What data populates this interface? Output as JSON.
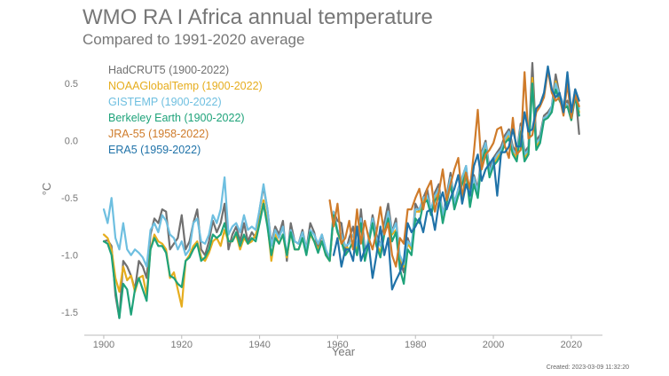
{
  "chart_data": {
    "type": "line",
    "title": "WMO RA I Africa annual temperature",
    "subtitle": "Compared to 1991-2020 average",
    "xlabel": "Year",
    "ylabel": "°C",
    "xlim": [
      1895,
      2028
    ],
    "ylim": [
      -1.7,
      0.75
    ],
    "xticks": [
      1900,
      1920,
      1940,
      1960,
      1980,
      2000,
      2020
    ],
    "yticks": [
      -1.5,
      -1.0,
      -0.5,
      0.0,
      0.5
    ],
    "ytick_labels": [
      "-1.5",
      "-1.0",
      "-0.5",
      "0.0",
      "0.5"
    ],
    "grid": false,
    "legend_position": "top-left",
    "created": "Created: 2023-03-09 11:32:20",
    "series": [
      {
        "name": "HadCRUT5 (1900-2022)",
        "color": "#707070",
        "start_year": 1900,
        "values": [
          -0.88,
          -0.87,
          -0.92,
          -1.35,
          -1.55,
          -1.05,
          -1.1,
          -1.18,
          -1.3,
          -1.05,
          -1.1,
          -1.2,
          -0.82,
          -0.68,
          -0.72,
          -0.6,
          -0.62,
          -0.95,
          -0.9,
          -0.85,
          -0.65,
          -0.95,
          -0.88,
          -0.72,
          -0.6,
          -0.95,
          -1.0,
          -0.88,
          -0.7,
          -0.8,
          -0.72,
          -0.55,
          -0.95,
          -0.82,
          -0.75,
          -0.88,
          -0.72,
          -0.88,
          -0.8,
          -0.85,
          -0.6,
          -0.4,
          -0.6,
          -0.9,
          -0.75,
          -0.82,
          -0.7,
          -1.05,
          -0.72,
          -0.88,
          -0.9,
          -0.78,
          -0.95,
          -0.72,
          -0.8,
          -0.95,
          -0.82,
          -0.95,
          -1.05,
          -0.62,
          -0.7,
          -0.72,
          -0.98,
          -0.85,
          -0.75,
          -1.0,
          -0.6,
          -0.95,
          -0.88,
          -0.65,
          -0.82,
          -0.92,
          -0.72,
          -0.55,
          -0.8,
          -0.68,
          -1.05,
          -1.15,
          -0.85,
          -0.95,
          -0.55,
          -0.62,
          -0.5,
          -0.42,
          -0.62,
          -0.45,
          -0.38,
          -0.65,
          -0.48,
          -0.28,
          -0.55,
          -0.42,
          -0.32,
          -0.22,
          -0.55,
          -0.3,
          -0.42,
          -0.1,
          0.0,
          -0.25,
          -0.15,
          -0.1,
          -0.05,
          0.05,
          0.1,
          -0.05,
          -0.1,
          0.15,
          -0.1,
          -0.05,
          0.68,
          0.0,
          0.05,
          0.22,
          0.25,
          0.3,
          0.58,
          0.4,
          0.32,
          0.35,
          0.2,
          0.45,
          0.06
        ]
      },
      {
        "name": "NOAAGlobalTemp (1900-2022)",
        "color": "#e6ad1e",
        "start_year": 1900,
        "values": [
          -0.82,
          -0.85,
          -0.95,
          -1.2,
          -1.32,
          -1.1,
          -1.22,
          -1.18,
          -1.32,
          -1.2,
          -1.18,
          -1.35,
          -0.95,
          -0.82,
          -0.88,
          -0.9,
          -0.95,
          -1.2,
          -1.15,
          -1.3,
          -1.45,
          -1.05,
          -1.0,
          -0.92,
          -0.88,
          -1.02,
          -1.05,
          -0.98,
          -0.88,
          -0.85,
          -0.92,
          -0.78,
          -0.88,
          -0.88,
          -0.82,
          -0.95,
          -0.85,
          -0.9,
          -0.88,
          -0.82,
          -0.7,
          -0.52,
          -0.72,
          -1.05,
          -0.82,
          -0.9,
          -0.82,
          -1.02,
          -0.8,
          -0.95,
          -0.95,
          -0.85,
          -0.98,
          -0.82,
          -0.88,
          -0.95,
          -0.88,
          -1.0,
          -1.05,
          -0.65,
          -0.8,
          -0.9,
          -0.92,
          -0.95,
          -0.88,
          -0.95,
          -0.72,
          -1.02,
          -0.88,
          -0.72,
          -0.9,
          -0.98,
          -0.8,
          -0.65,
          -0.82,
          -0.78,
          -1.02,
          -1.1,
          -0.9,
          -0.95,
          -0.62,
          -0.62,
          -0.52,
          -0.5,
          -0.62,
          -0.5,
          -0.45,
          -0.68,
          -0.52,
          -0.35,
          -0.58,
          -0.45,
          -0.35,
          -0.25,
          -0.55,
          -0.35,
          -0.48,
          -0.15,
          -0.05,
          -0.3,
          -0.2,
          -0.15,
          -0.1,
          0.0,
          0.05,
          -0.1,
          -0.15,
          0.1,
          -0.15,
          -0.1,
          0.55,
          -0.05,
          0.0,
          0.2,
          0.22,
          0.28,
          0.52,
          0.38,
          0.3,
          0.32,
          0.18,
          0.4,
          0.25
        ]
      },
      {
        "name": "GISTEMP (1900-2022)",
        "color": "#6ebfe0",
        "start_year": 1900,
        "values": [
          -0.6,
          -0.72,
          -0.5,
          -0.85,
          -0.95,
          -0.72,
          -0.95,
          -1.0,
          -0.95,
          -0.98,
          -1.02,
          -1.1,
          -0.78,
          -0.72,
          -0.8,
          -0.65,
          -0.7,
          -0.82,
          -0.85,
          -0.95,
          -0.88,
          -1.0,
          -0.95,
          -0.72,
          -0.68,
          -0.88,
          -0.9,
          -0.82,
          -0.65,
          -0.72,
          -0.6,
          -0.32,
          -0.82,
          -0.75,
          -0.72,
          -0.8,
          -0.65,
          -0.78,
          -0.75,
          -0.78,
          -0.6,
          -0.38,
          -0.6,
          -0.92,
          -0.78,
          -0.85,
          -0.75,
          -1.0,
          -0.78,
          -0.88,
          -0.9,
          -0.8,
          -0.95,
          -0.78,
          -0.82,
          -0.9,
          -0.82,
          -0.95,
          -1.02,
          -0.62,
          -0.78,
          -0.82,
          -0.92,
          -0.9,
          -0.82,
          -0.92,
          -0.68,
          -0.98,
          -0.85,
          -0.68,
          -0.85,
          -0.92,
          -0.78,
          -0.62,
          -0.8,
          -0.72,
          -1.0,
          -1.08,
          -0.88,
          -0.92,
          -0.6,
          -0.6,
          -0.5,
          -0.48,
          -0.6,
          -0.48,
          -0.42,
          -0.65,
          -0.5,
          -0.32,
          -0.55,
          -0.42,
          -0.32,
          -0.22,
          -0.52,
          -0.32,
          -0.45,
          -0.12,
          -0.02,
          -0.28,
          -0.18,
          -0.12,
          -0.08,
          0.02,
          0.08,
          -0.08,
          -0.12,
          0.12,
          -0.12,
          -0.08,
          0.5,
          -0.02,
          0.02,
          0.2,
          0.22,
          0.3,
          0.5,
          0.4,
          0.32,
          0.32,
          0.2,
          0.42,
          0.28
        ]
      },
      {
        "name": "Berkeley Earth (1900-2022)",
        "color": "#1fa37a",
        "start_year": 1900,
        "values": [
          -0.88,
          -0.9,
          -1.0,
          -1.3,
          -1.55,
          -1.25,
          -1.3,
          -1.52,
          -1.3,
          -1.2,
          -1.3,
          -1.4,
          -0.95,
          -0.85,
          -0.92,
          -0.92,
          -0.98,
          -1.18,
          -1.2,
          -1.25,
          -1.28,
          -1.05,
          -1.02,
          -0.95,
          -0.9,
          -1.05,
          -1.02,
          -0.95,
          -0.82,
          -0.85,
          -0.82,
          -0.72,
          -0.88,
          -0.88,
          -0.8,
          -0.92,
          -0.82,
          -0.9,
          -0.85,
          -0.88,
          -0.72,
          -0.55,
          -0.75,
          -1.0,
          -0.85,
          -0.9,
          -0.82,
          -1.0,
          -0.8,
          -0.95,
          -0.95,
          -0.85,
          -1.0,
          -0.8,
          -0.88,
          -0.98,
          -0.88,
          -1.0,
          -1.05,
          -0.65,
          -0.8,
          -0.88,
          -1.0,
          -0.95,
          -0.88,
          -1.0,
          -0.72,
          -1.05,
          -0.9,
          -0.72,
          -0.92,
          -1.02,
          -0.82,
          -0.68,
          -0.88,
          -0.8,
          -1.12,
          -1.25,
          -0.95,
          -1.0,
          -0.68,
          -0.72,
          -0.55,
          -0.52,
          -0.65,
          -0.52,
          -0.48,
          -0.72,
          -0.55,
          -0.38,
          -0.6,
          -0.48,
          -0.38,
          -0.28,
          -0.58,
          -0.38,
          -0.5,
          -0.18,
          -0.08,
          -0.32,
          -0.22,
          -0.18,
          -0.12,
          -0.02,
          0.02,
          -0.12,
          -0.18,
          0.08,
          -0.18,
          -0.12,
          0.5,
          -0.08,
          -0.02,
          0.18,
          0.2,
          0.25,
          0.45,
          0.35,
          0.28,
          0.3,
          0.18,
          0.38,
          0.22
        ]
      },
      {
        "name": "JRA-55 (1958-2022)",
        "color": "#cf7b2a",
        "start_year": 1958,
        "values": [
          -0.52,
          -0.75,
          -0.55,
          -0.9,
          -0.85,
          -0.7,
          -0.95,
          -0.6,
          -0.9,
          -0.7,
          -0.85,
          -0.95,
          -0.8,
          -0.58,
          -0.82,
          -0.72,
          -1.0,
          -1.1,
          -0.85,
          -0.9,
          -0.6,
          -0.6,
          -0.5,
          -0.42,
          -0.6,
          -0.42,
          -0.35,
          -0.62,
          -0.45,
          -0.25,
          -0.52,
          -0.38,
          -0.25,
          -0.15,
          -0.5,
          -0.28,
          -0.42,
          -0.1,
          0.27,
          -0.25,
          -0.12,
          -0.08,
          -0.02,
          0.1,
          0.12,
          -0.05,
          -0.15,
          0.2,
          -0.12,
          -0.08,
          0.6,
          0.02,
          0.05,
          0.25,
          0.3,
          0.38,
          0.62,
          0.42,
          0.35,
          0.38,
          0.22,
          0.5,
          0.2,
          0.4,
          0.3
        ]
      },
      {
        "name": "ERA5 (1959-2022)",
        "color": "#1f72a8",
        "start_year": 1959,
        "values": [
          -1.0,
          -0.85,
          -1.1,
          -0.95,
          -0.95,
          -1.05,
          -0.75,
          -1.05,
          -0.95,
          -0.9,
          -1.2,
          -1.0,
          -0.75,
          -1.0,
          -0.85,
          -1.3,
          -1.22,
          -1.15,
          -1.05,
          -0.72,
          -0.8,
          -0.75,
          -0.68,
          -0.8,
          -0.62,
          -0.6,
          -0.78,
          -0.55,
          -0.45,
          -0.6,
          -0.5,
          -0.42,
          -0.3,
          -0.55,
          -0.38,
          -0.48,
          -0.22,
          -0.12,
          -0.35,
          -0.25,
          -0.2,
          -0.15,
          -0.48,
          -0.1,
          -0.1,
          -0.05,
          0.1,
          -0.05,
          -0.05,
          0.25,
          0.08,
          0.1,
          0.28,
          0.32,
          0.42,
          0.65,
          0.45,
          0.38,
          0.42,
          0.25,
          0.6,
          0.25,
          0.45,
          0.35
        ]
      }
    ]
  }
}
